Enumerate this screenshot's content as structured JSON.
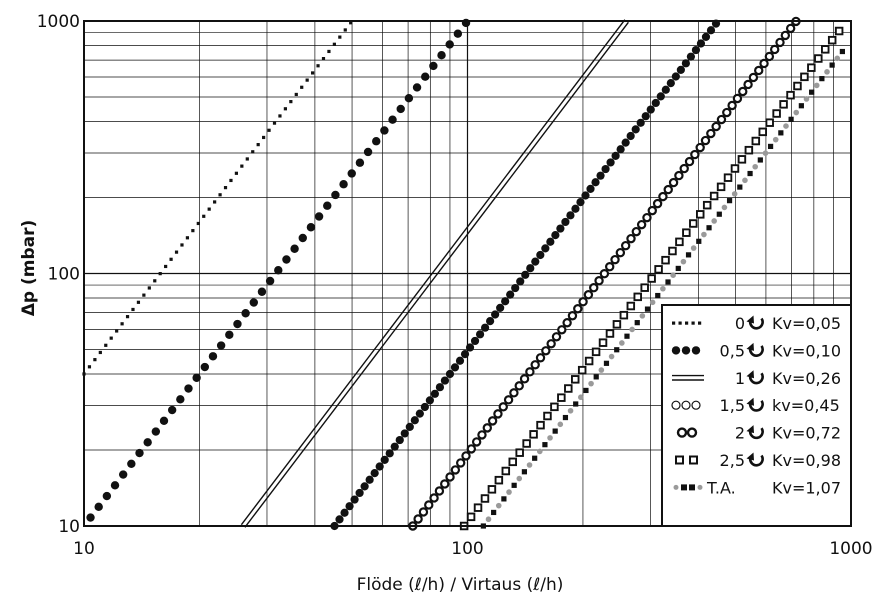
{
  "chart_data": {
    "type": "line",
    "xlabel": "Flöde (ℓ/h) / Virtaus (ℓ/h)",
    "ylabel": "Δp (mbar)",
    "x_scale": "log",
    "y_scale": "log",
    "xlim": [
      10,
      1000
    ],
    "ylim": [
      10,
      1000
    ],
    "grid": true,
    "legend_position": "bottom-right",
    "x_ticks": [
      "10",
      "100",
      "1000"
    ],
    "y_ticks": [
      "10",
      "100",
      "1000"
    ],
    "series": [
      {
        "name": "0",
        "icon": "turn-arrow-icon",
        "kv": "Kv=0,05",
        "style": "small-dots",
        "color": "#111111",
        "x": [
          10,
          50
        ],
        "y": [
          40,
          1000
        ]
      },
      {
        "name": "0,5",
        "icon": "turn-arrow-icon",
        "kv": "Kv=0,10",
        "style": "large-dots",
        "color": "#111111",
        "x": [
          10.4,
          100
        ],
        "y": [
          10.8,
          1000
        ]
      },
      {
        "name": "1",
        "icon": "turn-arrow-icon",
        "kv": "Kv=0,26",
        "style": "double-line",
        "color": "#111111",
        "x": [
          26,
          260
        ],
        "y": [
          10,
          1000
        ]
      },
      {
        "name": "1,5",
        "icon": "turn-arrow-icon",
        "kv": "kv=0,45",
        "style": "filled-dots",
        "color": "#111111",
        "x": [
          45,
          450
        ],
        "y": [
          10,
          1000
        ]
      },
      {
        "name": "2",
        "icon": "turn-arrow-icon",
        "kv": "Kv=0,72",
        "style": "open-circles",
        "color": "#111111",
        "x": [
          72,
          720
        ],
        "y": [
          10,
          1000
        ]
      },
      {
        "name": "2,5",
        "icon": "turn-arrow-icon",
        "kv": "Kv=0,98",
        "style": "open-squares",
        "color": "#111111",
        "x": [
          98,
          940
        ],
        "y": [
          10,
          930
        ]
      },
      {
        "name": "T.A.",
        "icon": "",
        "kv": "Kv=1,07",
        "style": "dash-dot-gray",
        "color": "#111111",
        "x": [
          110,
          970
        ],
        "y": [
          10,
          790
        ]
      }
    ]
  }
}
